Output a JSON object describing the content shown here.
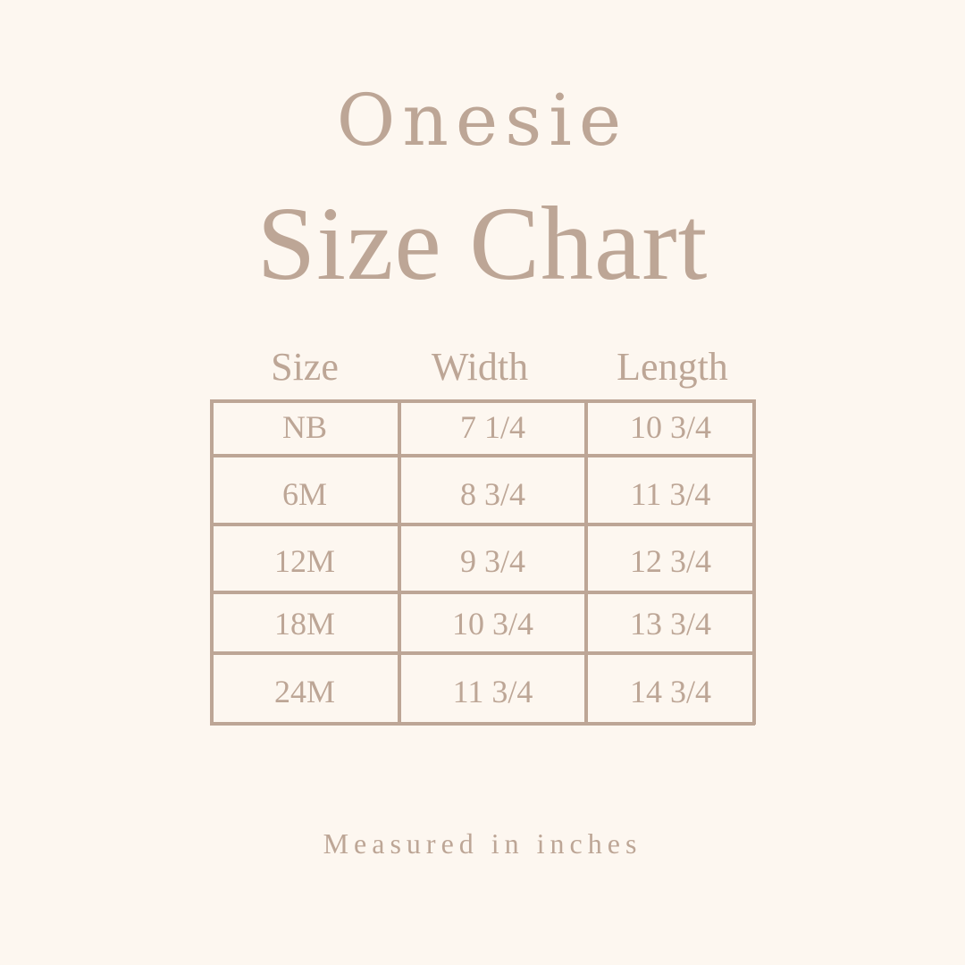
{
  "title_line1": "Onesie",
  "title_line2": "Size Chart",
  "table": {
    "headers": [
      "Size",
      "Width",
      "Length"
    ],
    "rows": [
      [
        "NB",
        "7 1/4",
        "10 3/4"
      ],
      [
        "6M",
        "8 3/4",
        "11 3/4"
      ],
      [
        "12M",
        "9 3/4",
        "12 3/4"
      ],
      [
        "18M",
        "10 3/4",
        "13 3/4"
      ],
      [
        "24M",
        "11 3/4",
        "14 3/4"
      ]
    ]
  },
  "footer": "Measured in inches",
  "colors": {
    "background": "#fdf7f0",
    "text": "#bda696"
  }
}
